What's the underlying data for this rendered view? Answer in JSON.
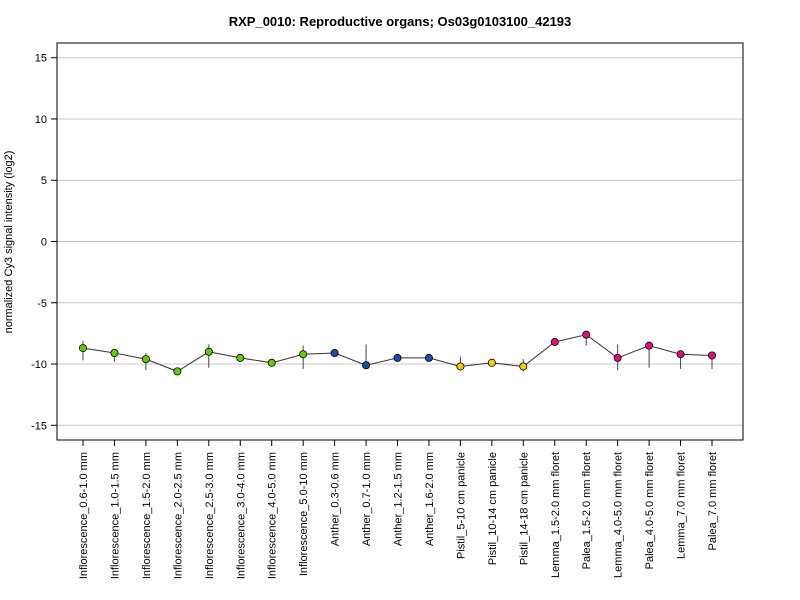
{
  "chart_data": {
    "type": "line",
    "title": "RXP_0010: Reproductive organs; Os03g0103100_42193",
    "xlabel": "",
    "ylabel": "normalized Cy3 signal intensity (log2)",
    "ylim": [
      -16.2,
      16.2
    ],
    "yticks": [
      -15,
      -10,
      -5,
      0,
      5,
      10,
      15
    ],
    "grid": true,
    "legend": "none",
    "categories": [
      "Inflorescence_0.6-1.0 mm",
      "Inflorescence_1.0-1.5 mm",
      "Inflorescence_1.5-2.0 mm",
      "Inflorescence_2.0-2.5 mm",
      "Inflorescence_2.5-3.0 mm",
      "Inflorescence_3.0-4.0 mm",
      "Inflorescence_4.0-5.0 mm",
      "Inflorescence_5.0-10 mm",
      "Anther_0.3-0.6 mm",
      "Anther_0.7-1.0 mm",
      "Anther_1.2-1.5 mm",
      "Anther_1.6-2.0 mm",
      "Pistil_5-10 cm panicle",
      "Pistil_10-14 cm panicle",
      "Pistil_14-18 cm panicle",
      "Lemma_1.5-2.0 mm floret",
      "Palea_1.5-2.0 mm floret",
      "Lemma_4.0-5.0 mm floret",
      "Palea_4.0-5.0 mm floret",
      "Lemma_7.0 mm floret",
      "Palea_7.0 mm floret"
    ],
    "values": [
      -8.7,
      -9.1,
      -9.6,
      -10.6,
      -9.0,
      -9.5,
      -9.9,
      -9.2,
      -9.1,
      -10.1,
      -9.5,
      -9.5,
      -10.2,
      -9.9,
      -10.2,
      -8.2,
      -7.6,
      -9.5,
      -8.5,
      -9.2,
      -9.3
    ],
    "err_low": [
      -9.7,
      -9.8,
      -10.5,
      -10.8,
      -10.3,
      -9.7,
      -10.2,
      -10.4,
      -9.3,
      -10.4,
      -9.6,
      -9.6,
      -10.4,
      -10.1,
      -10.6,
      -8.4,
      -8.5,
      -10.5,
      -10.3,
      -10.4,
      -10.4
    ],
    "err_high": [
      -8.1,
      -8.8,
      -9.1,
      -10.4,
      -8.4,
      -9.3,
      -9.6,
      -8.5,
      -8.9,
      -8.4,
      -9.4,
      -9.4,
      -9.4,
      -9.7,
      -9.6,
      -8.0,
      -7.3,
      -8.4,
      -8.2,
      -9.0,
      -9.1
    ],
    "point_colors": [
      "#66cc00",
      "#66cc00",
      "#66cc00",
      "#66cc00",
      "#66cc00",
      "#66cc00",
      "#66cc00",
      "#66cc00",
      "#1a4fa0",
      "#1a4fa0",
      "#1a4fa0",
      "#1a4fa0",
      "#f0d000",
      "#f0d000",
      "#f0d000",
      "#e0107a",
      "#e0107a",
      "#e0107a",
      "#e0107a",
      "#e0107a",
      "#e0107a"
    ],
    "line_color": "#333333",
    "grid_color": "#c8c8c8"
  }
}
